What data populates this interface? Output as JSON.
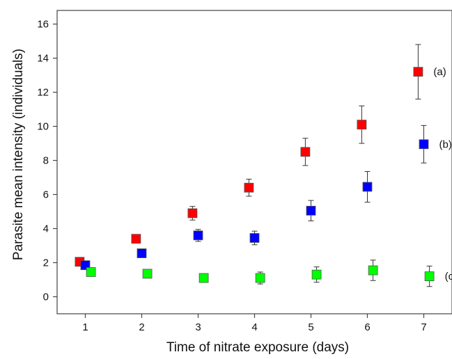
{
  "chart_data": {
    "type": "scatter",
    "title": "",
    "xlabel": "Time of nitrate exposure (days)",
    "ylabel": "Parasite mean intensity (individuals)",
    "xlim": [
      0.5,
      7.5
    ],
    "ylim": [
      -1,
      16.8
    ],
    "xticks": [
      "1",
      "2",
      "3",
      "4",
      "5",
      "6",
      "7"
    ],
    "yticks": [
      "0",
      "2",
      "4",
      "6",
      "8",
      "10",
      "12",
      "14",
      "16"
    ],
    "grid": false,
    "error_bars": true,
    "series": [
      {
        "name": "(a)",
        "color": "#ff0000",
        "x_offset": -0.1,
        "points": [
          {
            "x": 1,
            "y": 2.05,
            "err": 0.1
          },
          {
            "x": 2,
            "y": 3.4,
            "err": 0.15
          },
          {
            "x": 3,
            "y": 4.9,
            "err": 0.4
          },
          {
            "x": 4,
            "y": 6.4,
            "err": 0.5
          },
          {
            "x": 5,
            "y": 8.5,
            "err": 0.8
          },
          {
            "x": 6,
            "y": 10.1,
            "err": 1.1
          },
          {
            "x": 7,
            "y": 13.2,
            "err": 1.6
          }
        ]
      },
      {
        "name": "(b)",
        "color": "#0000ff",
        "x_offset": 0,
        "points": [
          {
            "x": 1,
            "y": 1.85,
            "err": 0.1
          },
          {
            "x": 2,
            "y": 2.55,
            "err": 0.15
          },
          {
            "x": 3,
            "y": 3.6,
            "err": 0.35
          },
          {
            "x": 4,
            "y": 3.45,
            "err": 0.4
          },
          {
            "x": 5,
            "y": 5.05,
            "err": 0.6
          },
          {
            "x": 6,
            "y": 6.45,
            "err": 0.9
          },
          {
            "x": 7,
            "y": 8.95,
            "err": 1.1
          }
        ]
      },
      {
        "name": "(c)",
        "color": "#00ff00",
        "x_offset": 0.1,
        "points": [
          {
            "x": 1,
            "y": 1.45,
            "err": 0.1
          },
          {
            "x": 2,
            "y": 1.35,
            "err": 0.15
          },
          {
            "x": 3,
            "y": 1.1,
            "err": 0.25
          },
          {
            "x": 4,
            "y": 1.1,
            "err": 0.35
          },
          {
            "x": 5,
            "y": 1.3,
            "err": 0.45
          },
          {
            "x": 6,
            "y": 1.55,
            "err": 0.6
          },
          {
            "x": 7,
            "y": 1.2,
            "err": 0.6
          }
        ]
      }
    ]
  }
}
